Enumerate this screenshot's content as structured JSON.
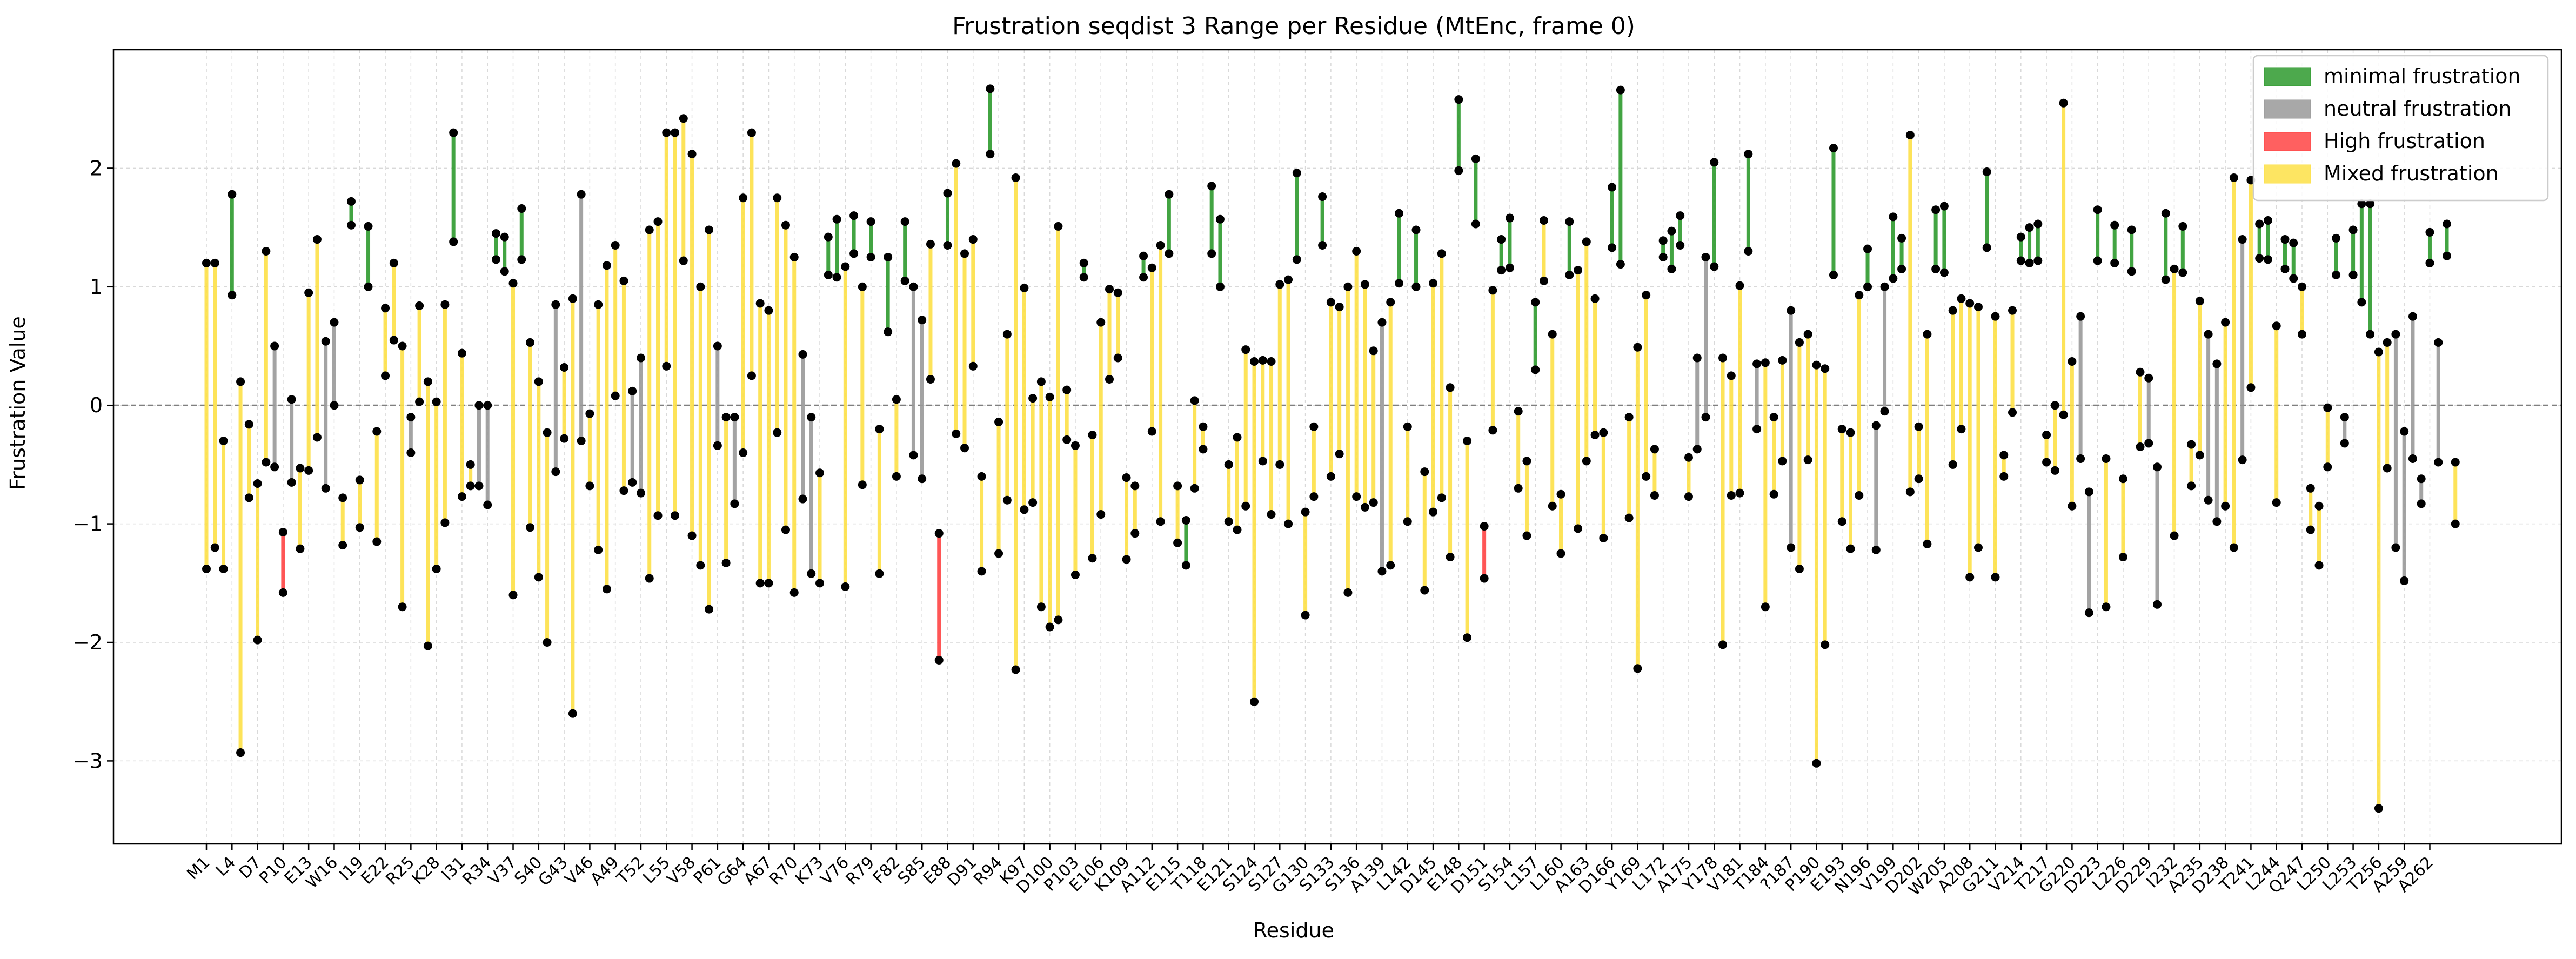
{
  "chart_data": {
    "type": "range",
    "title": "Frustration seqdist 3 Range per Residue (MtEnc, frame 0)",
    "xlabel": "Residue",
    "ylabel": "Frustration Value",
    "ylim": [
      -3.7,
      3.0
    ],
    "yticks": [
      -3,
      -2,
      -1,
      0,
      1,
      2
    ],
    "reference_line": 0,
    "grid": true,
    "legend_position": "top-right",
    "legend": [
      {
        "key": "minimal",
        "label": "minimal frustration",
        "color": "#2e9a2e"
      },
      {
        "key": "neutral",
        "label": "neutral frustration",
        "color": "#999999"
      },
      {
        "key": "high",
        "label": "High frustration",
        "color": "#ff4444"
      },
      {
        "key": "mixed",
        "label": "Mixed frustration",
        "color": "#fde047"
      }
    ],
    "x_tick_labels": [
      "M1",
      "L4",
      "D7",
      "P10",
      "E13",
      "W16",
      "I19",
      "E22",
      "R25",
      "K28",
      "I31",
      "R34",
      "V37",
      "S40",
      "G43",
      "V46",
      "A49",
      "T52",
      "L55",
      "V58",
      "P61",
      "G64",
      "A67",
      "R70",
      "K73",
      "V76",
      "R79",
      "F82",
      "S85",
      "E88",
      "D91",
      "R94",
      "K97",
      "D100",
      "P103",
      "E106",
      "K109",
      "A112",
      "E115",
      "T118",
      "E121",
      "S124",
      "S127",
      "G130",
      "S133",
      "S136",
      "A139",
      "L142",
      "D145",
      "E148",
      "D151",
      "S154",
      "L157",
      "L160",
      "A163",
      "D166",
      "Y169",
      "L172",
      "A175",
      "Y178",
      "V181",
      "T184",
      "?187",
      "P190",
      "E193",
      "N196",
      "V199",
      "D202",
      "W205",
      "A208",
      "G211",
      "V214",
      "T217",
      "G220",
      "D223",
      "L226",
      "D229",
      "I232",
      "A235",
      "D238",
      "T241",
      "L244",
      "Q247",
      "L250",
      "L253",
      "T256",
      "A259",
      "A262"
    ],
    "residue_count": 264,
    "ranges": [
      [
        -1.38,
        1.2
      ],
      [
        1.2,
        -1.2
      ],
      [
        -1.38,
        -0.3
      ],
      [
        0.93,
        1.78
      ],
      [
        -2.93,
        0.2
      ],
      [
        -0.78,
        -0.16
      ],
      [
        -1.98,
        -0.66
      ],
      [
        -0.48,
        1.3
      ],
      [
        -0.52,
        0.5
      ],
      [
        -1.07,
        -1.58
      ],
      [
        -0.65,
        0.05
      ],
      [
        -1.21,
        -0.53
      ],
      [
        -0.55,
        0.95
      ],
      [
        -0.27,
        1.4
      ],
      [
        -0.7,
        0.54
      ],
      [
        0.0,
        0.7
      ],
      [
        -1.18,
        -0.78
      ],
      [
        1.52,
        1.72
      ],
      [
        -1.03,
        -0.63
      ],
      [
        1.0,
        1.51
      ],
      [
        -1.15,
        -0.22
      ],
      [
        0.25,
        0.82
      ],
      [
        0.55,
        1.2
      ],
      [
        -1.7,
        0.5
      ],
      [
        -0.4,
        -0.1
      ],
      [
        0.03,
        0.84
      ],
      [
        -2.03,
        0.2
      ],
      [
        -1.38,
        0.03
      ],
      [
        -0.99,
        0.85
      ],
      [
        1.38,
        2.3
      ],
      [
        -0.77,
        0.44
      ],
      [
        -0.5,
        -0.68
      ],
      [
        -0.68,
        0.0
      ],
      [
        -0.84,
        0.0
      ],
      [
        1.23,
        1.45
      ],
      [
        1.13,
        1.42
      ],
      [
        -1.6,
        1.03
      ],
      [
        1.23,
        1.66
      ],
      [
        -1.03,
        0.53
      ],
      [
        -1.45,
        0.2
      ],
      [
        -2.0,
        -0.23
      ],
      [
        -0.56,
        0.85
      ],
      [
        -0.28,
        0.32
      ],
      [
        -2.6,
        0.9
      ],
      [
        -0.3,
        1.78
      ],
      [
        -0.68,
        -0.07
      ],
      [
        -1.22,
        0.85
      ],
      [
        -1.55,
        1.18
      ],
      [
        0.08,
        1.35
      ],
      [
        -0.72,
        1.05
      ],
      [
        0.12,
        -0.65
      ],
      [
        -0.74,
        0.4
      ],
      [
        -1.46,
        1.48
      ],
      [
        -0.93,
        1.55
      ],
      [
        2.3,
        0.33
      ],
      [
        -0.93,
        2.3
      ],
      [
        1.22,
        2.42
      ],
      [
        -1.1,
        2.12
      ],
      [
        -1.35,
        1.0
      ],
      [
        -1.72,
        1.48
      ],
      [
        -0.34,
        0.5
      ],
      [
        -0.1,
        -1.33
      ],
      [
        -0.83,
        -0.1
      ],
      [
        -0.4,
        1.75
      ],
      [
        0.25,
        2.3
      ],
      [
        -1.5,
        0.86
      ],
      [
        -1.5,
        0.8
      ],
      [
        -0.23,
        1.75
      ],
      [
        -1.05,
        1.52
      ],
      [
        -1.58,
        1.25
      ],
      [
        -0.79,
        0.43
      ],
      [
        -1.42,
        -0.1
      ],
      [
        -1.5,
        -0.57
      ],
      [
        1.1,
        1.42
      ],
      [
        1.08,
        1.57
      ],
      [
        -1.53,
        1.17
      ],
      [
        1.28,
        1.6
      ],
      [
        -0.67,
        1.0
      ],
      [
        1.25,
        1.55
      ],
      [
        -1.42,
        -0.2
      ],
      [
        0.62,
        1.25
      ],
      [
        0.05,
        -0.6
      ],
      [
        1.05,
        1.55
      ],
      [
        -0.42,
        1.0
      ],
      [
        0.72,
        -0.62
      ],
      [
        0.22,
        1.36
      ],
      [
        -1.08,
        -2.15
      ],
      [
        1.35,
        1.79
      ],
      [
        -0.24,
        2.04
      ],
      [
        1.28,
        -0.36
      ],
      [
        0.33,
        1.4
      ],
      [
        -0.6,
        -1.4
      ],
      [
        2.12,
        2.67
      ],
      [
        -1.25,
        -0.14
      ],
      [
        -0.8,
        0.6
      ],
      [
        -2.23,
        1.92
      ],
      [
        -0.88,
        0.99
      ],
      [
        -0.82,
        0.06
      ],
      [
        -1.7,
        0.2
      ],
      [
        -1.87,
        0.07
      ],
      [
        -1.81,
        1.51
      ],
      [
        -0.29,
        0.13
      ],
      [
        -1.43,
        -0.34
      ],
      [
        1.08,
        1.2
      ],
      [
        -1.29,
        -0.25
      ],
      [
        -0.92,
        0.7
      ],
      [
        0.22,
        0.98
      ],
      [
        0.4,
        0.95
      ],
      [
        -1.3,
        -0.61
      ],
      [
        -1.08,
        -0.68
      ],
      [
        1.08,
        1.26
      ],
      [
        -0.22,
        1.16
      ],
      [
        -0.98,
        1.35
      ],
      [
        1.28,
        1.78
      ],
      [
        -1.16,
        -0.68
      ],
      [
        -1.35,
        -0.97
      ],
      [
        -0.7,
        0.04
      ],
      [
        -0.18,
        -0.37
      ],
      [
        1.28,
        1.85
      ],
      [
        1.0,
        1.57
      ],
      [
        -0.98,
        -0.5
      ],
      [
        -1.05,
        -0.27
      ],
      [
        -0.85,
        0.47
      ],
      [
        -2.5,
        0.37
      ],
      [
        -0.47,
        0.38
      ],
      [
        -0.92,
        0.37
      ],
      [
        -0.5,
        1.02
      ],
      [
        -1.0,
        1.06
      ],
      [
        1.23,
        1.96
      ],
      [
        -0.9,
        -1.77
      ],
      [
        -0.18,
        -0.77
      ],
      [
        1.35,
        1.76
      ],
      [
        -0.6,
        0.87
      ],
      [
        -0.41,
        0.83
      ],
      [
        -1.58,
        1.0
      ],
      [
        -0.77,
        1.3
      ],
      [
        -0.86,
        1.02
      ],
      [
        -0.82,
        0.46
      ],
      [
        -1.4,
        0.7
      ],
      [
        -1.35,
        0.87
      ],
      [
        1.03,
        1.62
      ],
      [
        -0.18,
        -0.98
      ],
      [
        1.0,
        1.48
      ],
      [
        -1.56,
        -0.56
      ],
      [
        -0.9,
        1.03
      ],
      [
        -0.78,
        1.28
      ],
      [
        0.15,
        -1.28
      ],
      [
        1.98,
        2.58
      ],
      [
        -0.3,
        -1.96
      ],
      [
        1.53,
        2.08
      ],
      [
        -1.02,
        -1.46
      ],
      [
        -0.21,
        0.97
      ],
      [
        1.14,
        1.4
      ],
      [
        1.16,
        1.58
      ],
      [
        -0.05,
        -0.7
      ],
      [
        -0.47,
        -1.1
      ],
      [
        0.3,
        0.87
      ],
      [
        1.05,
        1.56
      ],
      [
        -0.85,
        0.6
      ],
      [
        -0.75,
        -1.25
      ],
      [
        1.1,
        1.55
      ],
      [
        -1.04,
        1.14
      ],
      [
        -0.47,
        1.38
      ],
      [
        -0.25,
        0.9
      ],
      [
        -1.12,
        -0.23
      ],
      [
        1.33,
        1.84
      ],
      [
        1.19,
        2.66
      ],
      [
        -0.1,
        -0.95
      ],
      [
        -2.22,
        0.49
      ],
      [
        -0.6,
        0.93
      ],
      [
        -0.76,
        -0.37
      ],
      [
        1.25,
        1.39
      ],
      [
        1.15,
        1.47
      ],
      [
        1.35,
        1.6
      ],
      [
        -0.77,
        -0.44
      ],
      [
        0.4,
        -0.37
      ],
      [
        -0.1,
        1.25
      ],
      [
        1.17,
        2.05
      ],
      [
        -2.02,
        0.4
      ],
      [
        -0.76,
        0.25
      ],
      [
        -0.74,
        1.01
      ],
      [
        1.3,
        2.12
      ],
      [
        -0.2,
        0.35
      ],
      [
        -1.7,
        0.36
      ],
      [
        -0.75,
        -0.1
      ],
      [
        -0.47,
        0.38
      ],
      [
        -1.2,
        0.8
      ],
      [
        -1.38,
        0.53
      ],
      [
        -0.46,
        0.6
      ],
      [
        -3.02,
        0.34
      ],
      [
        -2.02,
        0.31
      ],
      [
        1.1,
        2.17
      ],
      [
        -0.98,
        -0.2
      ],
      [
        -1.21,
        -0.23
      ],
      [
        -0.76,
        0.93
      ],
      [
        1.0,
        1.32
      ],
      [
        -1.22,
        -0.17
      ],
      [
        1.0,
        -0.05
      ],
      [
        1.07,
        1.59
      ],
      [
        1.15,
        1.41
      ],
      [
        -0.73,
        2.28
      ],
      [
        -0.18,
        -0.62
      ],
      [
        -1.17,
        0.6
      ],
      [
        1.15,
        1.65
      ],
      [
        1.12,
        1.68
      ],
      [
        -0.5,
        0.8
      ],
      [
        0.9,
        -0.2
      ],
      [
        -1.45,
        0.86
      ],
      [
        -1.2,
        0.83
      ],
      [
        1.33,
        1.97
      ],
      [
        -1.45,
        0.75
      ],
      [
        -0.6,
        -0.42
      ],
      [
        -0.06,
        0.8
      ],
      [
        1.22,
        1.42
      ],
      [
        1.2,
        1.5
      ],
      [
        1.22,
        1.53
      ],
      [
        -0.48,
        -0.25
      ],
      [
        0.0,
        -0.55
      ],
      [
        -0.08,
        2.55
      ],
      [
        -0.85,
        0.37
      ],
      [
        0.75,
        -0.45
      ],
      [
        -1.75,
        -0.73
      ],
      [
        1.22,
        1.65
      ],
      [
        -1.7,
        -0.45
      ],
      [
        1.2,
        1.52
      ],
      [
        -1.28,
        -0.62
      ],
      [
        1.13,
        1.48
      ],
      [
        -0.35,
        0.28
      ],
      [
        -0.32,
        0.23
      ],
      [
        -1.68,
        -0.52
      ],
      [
        1.06,
        1.62
      ],
      [
        -1.1,
        1.15
      ],
      [
        1.12,
        1.51
      ],
      [
        -0.68,
        -0.33
      ],
      [
        -0.42,
        0.88
      ],
      [
        -0.8,
        0.6
      ],
      [
        -0.98,
        0.35
      ],
      [
        -0.85,
        0.7
      ],
      [
        -1.2,
        1.92
      ],
      [
        -0.46,
        1.4
      ],
      [
        0.15,
        1.9
      ],
      [
        1.24,
        1.53
      ],
      [
        1.23,
        1.56
      ],
      [
        -0.82,
        0.67
      ],
      [
        1.15,
        1.4
      ],
      [
        1.07,
        1.37
      ],
      [
        0.6,
        1.0
      ],
      [
        -1.05,
        -0.7
      ],
      [
        -1.35,
        -0.85
      ],
      [
        -0.52,
        -0.02
      ],
      [
        1.1,
        1.41
      ],
      [
        -0.32,
        -0.1
      ],
      [
        1.1,
        1.48
      ],
      [
        0.87,
        1.7
      ],
      [
        0.6,
        1.7
      ],
      [
        -3.4,
        0.45
      ],
      [
        -0.53,
        0.53
      ],
      [
        -1.2,
        0.6
      ],
      [
        -1.48,
        -0.22
      ],
      [
        -0.45,
        0.75
      ],
      [
        -0.83,
        -0.62
      ],
      [
        1.2,
        1.46
      ],
      [
        -0.48,
        0.53
      ],
      [
        1.26,
        1.53
      ],
      [
        -0.48,
        -1.0
      ]
    ],
    "high_frustration_residues": [
      10,
      87,
      151
    ],
    "minimal_frustration_residues": [
      4,
      18,
      20,
      30,
      35,
      36,
      38,
      74,
      75,
      77,
      79,
      81,
      83,
      88,
      93,
      104,
      111,
      114,
      116,
      119,
      120,
      129,
      132,
      141,
      143,
      148,
      150,
      153,
      154,
      157,
      161,
      166,
      167,
      172,
      173,
      174,
      178,
      182,
      192,
      196,
      199,
      200,
      204,
      205,
      210,
      214,
      215,
      216,
      223,
      225,
      227,
      231,
      233,
      242,
      243,
      245,
      246,
      251,
      253,
      254,
      255,
      262,
      264
    ],
    "neutral_frustration_residues": [
      9,
      11,
      15,
      16,
      25,
      33,
      34,
      42,
      45,
      51,
      52,
      61,
      63,
      71,
      72,
      84,
      85,
      129,
      139,
      176,
      177,
      183,
      187,
      197,
      198,
      221,
      222,
      229,
      230,
      236,
      237,
      240,
      252,
      258,
      259,
      260,
      261,
      263
    ]
  }
}
